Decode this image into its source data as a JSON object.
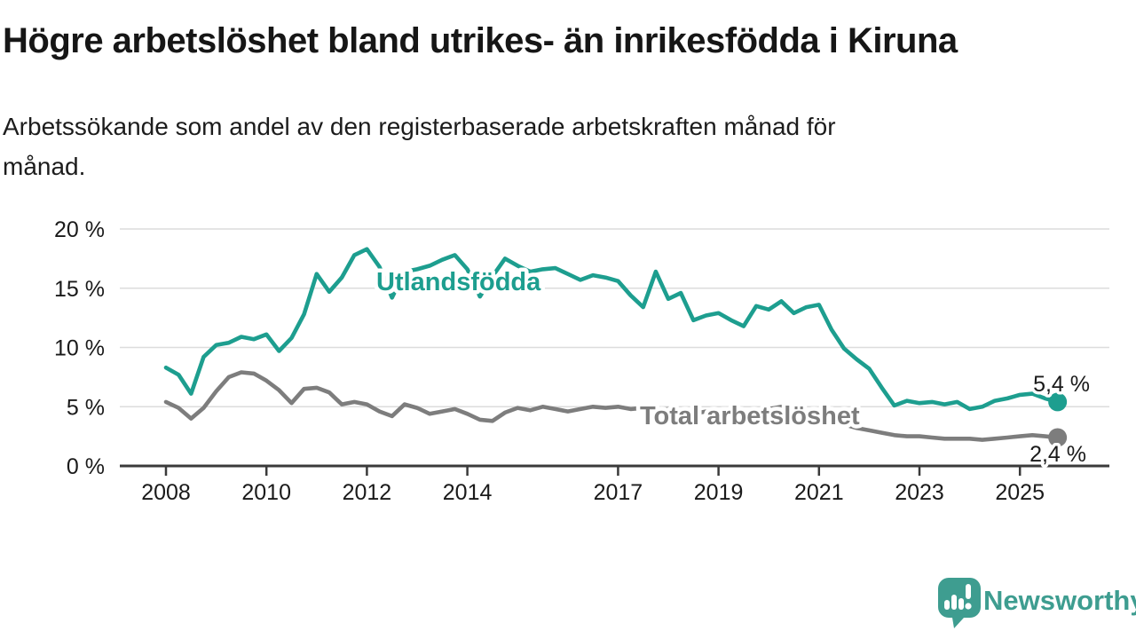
{
  "title": "Högre arbetslöshet bland utrikes- än inrikesfödda i Kiruna",
  "subtitle_lines": [
    "Arbetssökande som andel av den registerbaserade arbetskraften månad för",
    "månad."
  ],
  "chart_data": {
    "type": "line",
    "unit": "%",
    "grid": true,
    "legend": "inline-labels",
    "ylim": [
      0,
      20
    ],
    "y_ticks": [
      {
        "value": 0,
        "label": "0 %"
      },
      {
        "value": 5,
        "label": "5 %"
      },
      {
        "value": 10,
        "label": "10 %"
      },
      {
        "value": 15,
        "label": "15 %"
      },
      {
        "value": 20,
        "label": "20 %"
      }
    ],
    "x_ticks": [
      {
        "year": 2008,
        "label": "2008"
      },
      {
        "year": 2010,
        "label": "2010"
      },
      {
        "year": 2012,
        "label": "2012"
      },
      {
        "year": 2014,
        "label": "2014"
      },
      {
        "year": 2017,
        "label": "2017"
      },
      {
        "year": 2019,
        "label": "2019"
      },
      {
        "year": 2021,
        "label": "2021"
      },
      {
        "year": 2023,
        "label": "2023"
      },
      {
        "year": 2025,
        "label": "2025"
      }
    ],
    "x_start_year": 2008,
    "x_step_months": 3,
    "series": [
      {
        "name": "Utlandsfödda",
        "color": "#1d9e8f",
        "end_value": 5.4,
        "end_label": "5,4 %",
        "values": [
          8.3,
          7.7,
          6.1,
          9.2,
          10.2,
          10.4,
          10.9,
          10.7,
          11.1,
          9.7,
          10.8,
          12.8,
          16.2,
          14.7,
          15.9,
          17.8,
          18.3,
          16.8,
          14.2,
          16.4,
          16.6,
          16.9,
          17.4,
          17.8,
          16.6,
          14.3,
          16.0,
          17.5,
          16.9,
          16.4,
          16.6,
          16.7,
          16.2,
          15.7,
          16.1,
          15.9,
          15.6,
          14.4,
          13.4,
          16.4,
          14.1,
          14.6,
          12.3,
          12.7,
          12.9,
          12.3,
          11.8,
          13.5,
          13.2,
          13.9,
          12.9,
          13.4,
          13.6,
          11.5,
          9.9,
          9.0,
          8.2,
          6.6,
          5.1,
          5.5,
          5.3,
          5.4,
          5.2,
          5.4,
          4.8,
          5.0,
          5.5,
          5.7,
          6.0,
          6.1,
          5.7,
          5.4
        ]
      },
      {
        "name": "Total arbetslöshet",
        "color": "#7d7d7d",
        "end_value": 2.4,
        "end_label": "2,4 %",
        "values": [
          5.4,
          4.9,
          4.0,
          4.9,
          6.3,
          7.5,
          7.9,
          7.8,
          7.2,
          6.4,
          5.3,
          6.5,
          6.6,
          6.2,
          5.2,
          5.4,
          5.2,
          4.6,
          4.2,
          5.2,
          4.9,
          4.4,
          4.6,
          4.8,
          4.4,
          3.9,
          3.8,
          4.5,
          4.9,
          4.7,
          5.0,
          4.8,
          4.6,
          4.8,
          5.0,
          4.9,
          5.0,
          4.8,
          4.9,
          4.7,
          4.8,
          4.6,
          4.4,
          4.6,
          4.7,
          4.4,
          4.3,
          4.5,
          4.8,
          5.0,
          4.8,
          4.6,
          4.4,
          4.0,
          3.5,
          3.2,
          3.0,
          2.8,
          2.6,
          2.5,
          2.5,
          2.4,
          2.3,
          2.3,
          2.3,
          2.2,
          2.3,
          2.4,
          2.5,
          2.6,
          2.5,
          2.4
        ]
      }
    ]
  },
  "colors": {
    "accent_teal": "#1d9e8f",
    "line_gray": "#7d7d7d",
    "grid": "#dcdcdc",
    "axis": "#3a3a3a",
    "text": "#1a1a1a",
    "logo_teal": "#3e9d90"
  },
  "logo": {
    "text": "Newsworthy"
  }
}
